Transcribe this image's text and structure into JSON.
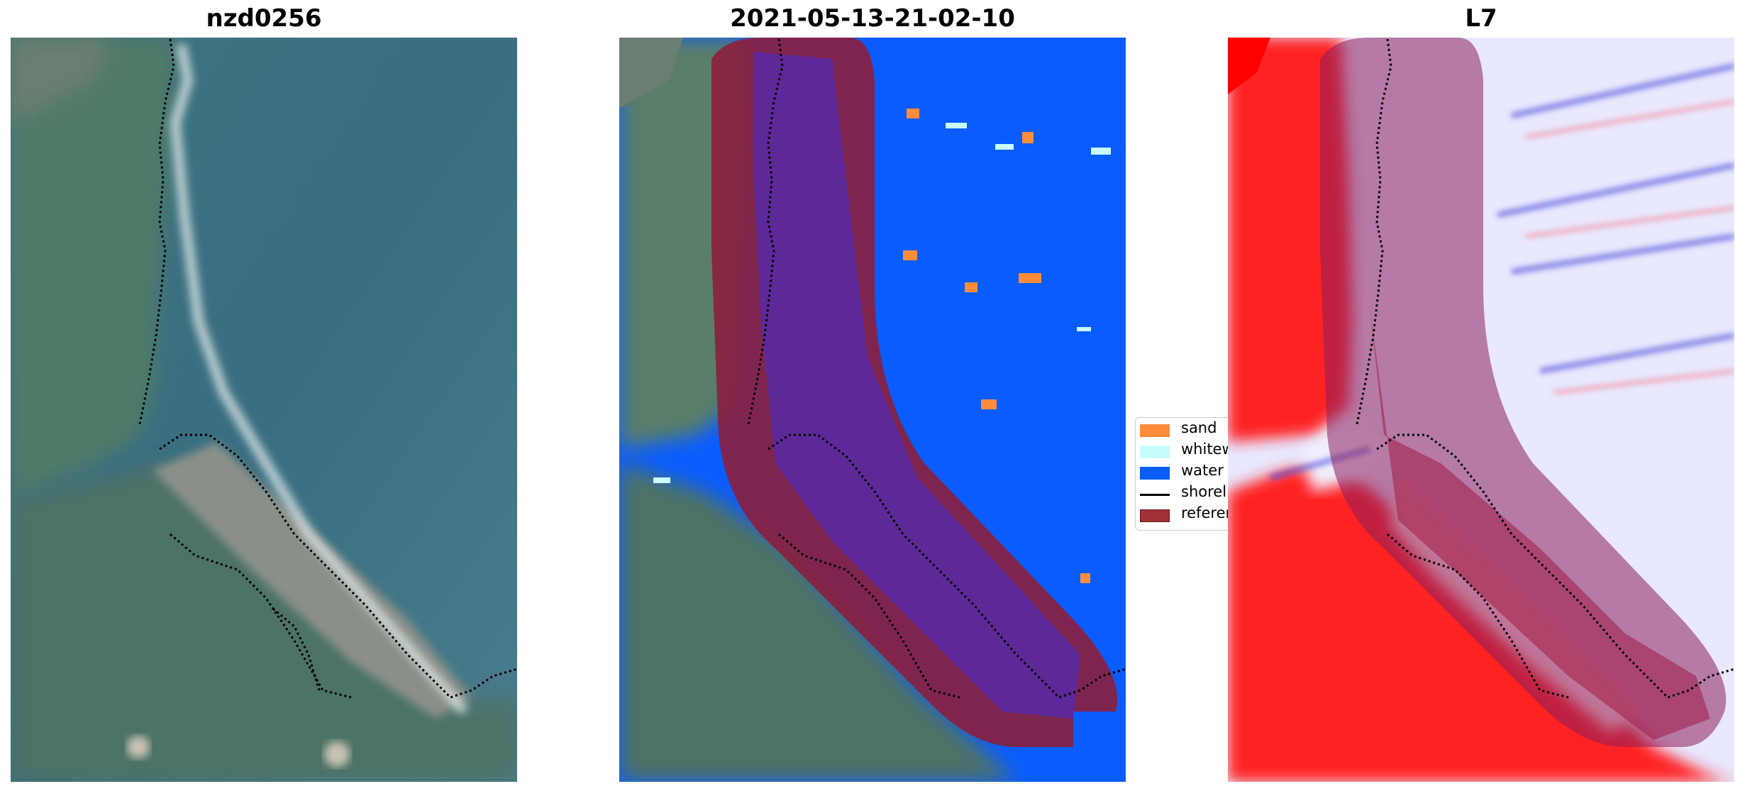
{
  "panels": [
    {
      "title": "nzd0256"
    },
    {
      "title": "2021-05-13-21-02-10"
    },
    {
      "title": "L7"
    }
  ],
  "legend": {
    "items": [
      {
        "label": "sand",
        "color": "#ff8c3a"
      },
      {
        "label": "whitewater",
        "color": "#c8fdff"
      },
      {
        "label": "water",
        "color": "#0a5cff"
      },
      {
        "label": "shoreline",
        "color": "#000000"
      },
      {
        "label": "reference",
        "color": "#a3313a"
      }
    ]
  },
  "colors": {
    "reference_band": "#8b1f3c",
    "water_class": "#0a5cff",
    "land_red": "#ff2020"
  }
}
